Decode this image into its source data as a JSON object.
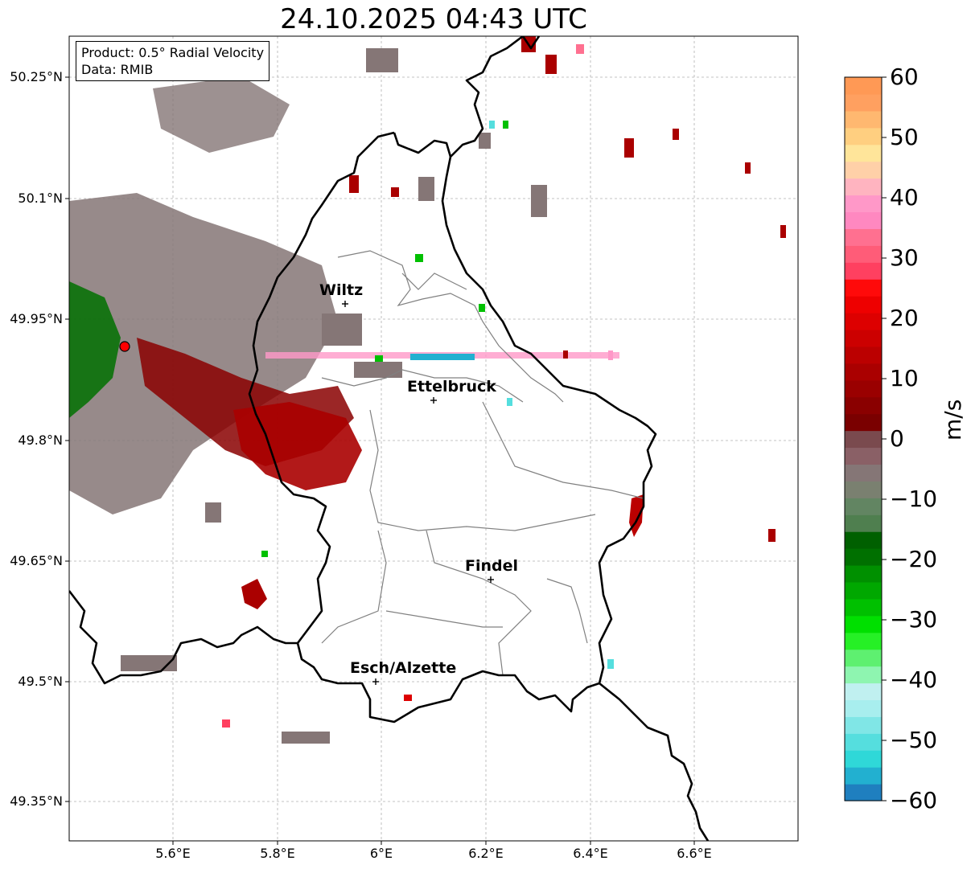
{
  "title": "24.10.2025 04:43 UTC",
  "product_box": {
    "product": "Product: 0.5° Radial Velocity",
    "data_source": "Data: RMIB"
  },
  "lat_labels": [
    "50.25°N",
    "50.1°N",
    "49.95°N",
    "49.8°N",
    "49.65°N",
    "49.5°N",
    "49.35°N"
  ],
  "lon_labels": [
    "5.6°E",
    "5.8°E",
    "6°E",
    "6.2°E",
    "6.4°E",
    "6.6°E"
  ],
  "cities": [
    {
      "name": "Wiltz"
    },
    {
      "name": "Ettelbruck"
    },
    {
      "name": "Findel"
    },
    {
      "name": "Esch/Alzette"
    }
  ],
  "colorbar": {
    "unit": "m/s",
    "ticks": [
      "60",
      "50",
      "40",
      "30",
      "20",
      "10",
      "0",
      "−10",
      "−20",
      "−30",
      "−40",
      "−50",
      "−60"
    ],
    "min": -60,
    "max": 60,
    "colors": [
      "#1f7fbf",
      "#22b0d0",
      "#2fd8d8",
      "#55dede",
      "#80e6e6",
      "#a8eeee",
      "#c0f0f0",
      "#8ef5b0",
      "#5ef070",
      "#26f026",
      "#00e000",
      "#00c000",
      "#00a800",
      "#009000",
      "#007000",
      "#006000",
      "#4f7f4f",
      "#628562",
      "#7a8070",
      "#857676",
      "#8a6066",
      "#7a4a4e",
      "#7a0000",
      "#8a0000",
      "#9a0000",
      "#aa0000",
      "#bb0000",
      "#cc0000",
      "#dd0000",
      "#ee0000",
      "#ff0a0a",
      "#ff4060",
      "#ff5c78",
      "#ff7090",
      "#ff88c0",
      "#ff98c8",
      "#ffb4c0",
      "#ffd0a8",
      "#ffe59a",
      "#ffcf80",
      "#ffb870",
      "#ffa060",
      "#ff9955"
    ]
  },
  "colors": {
    "border_national": "#000000",
    "border_canton": "#808080",
    "radar_site": "#ff0000",
    "grid": "#b0b0b0"
  }
}
